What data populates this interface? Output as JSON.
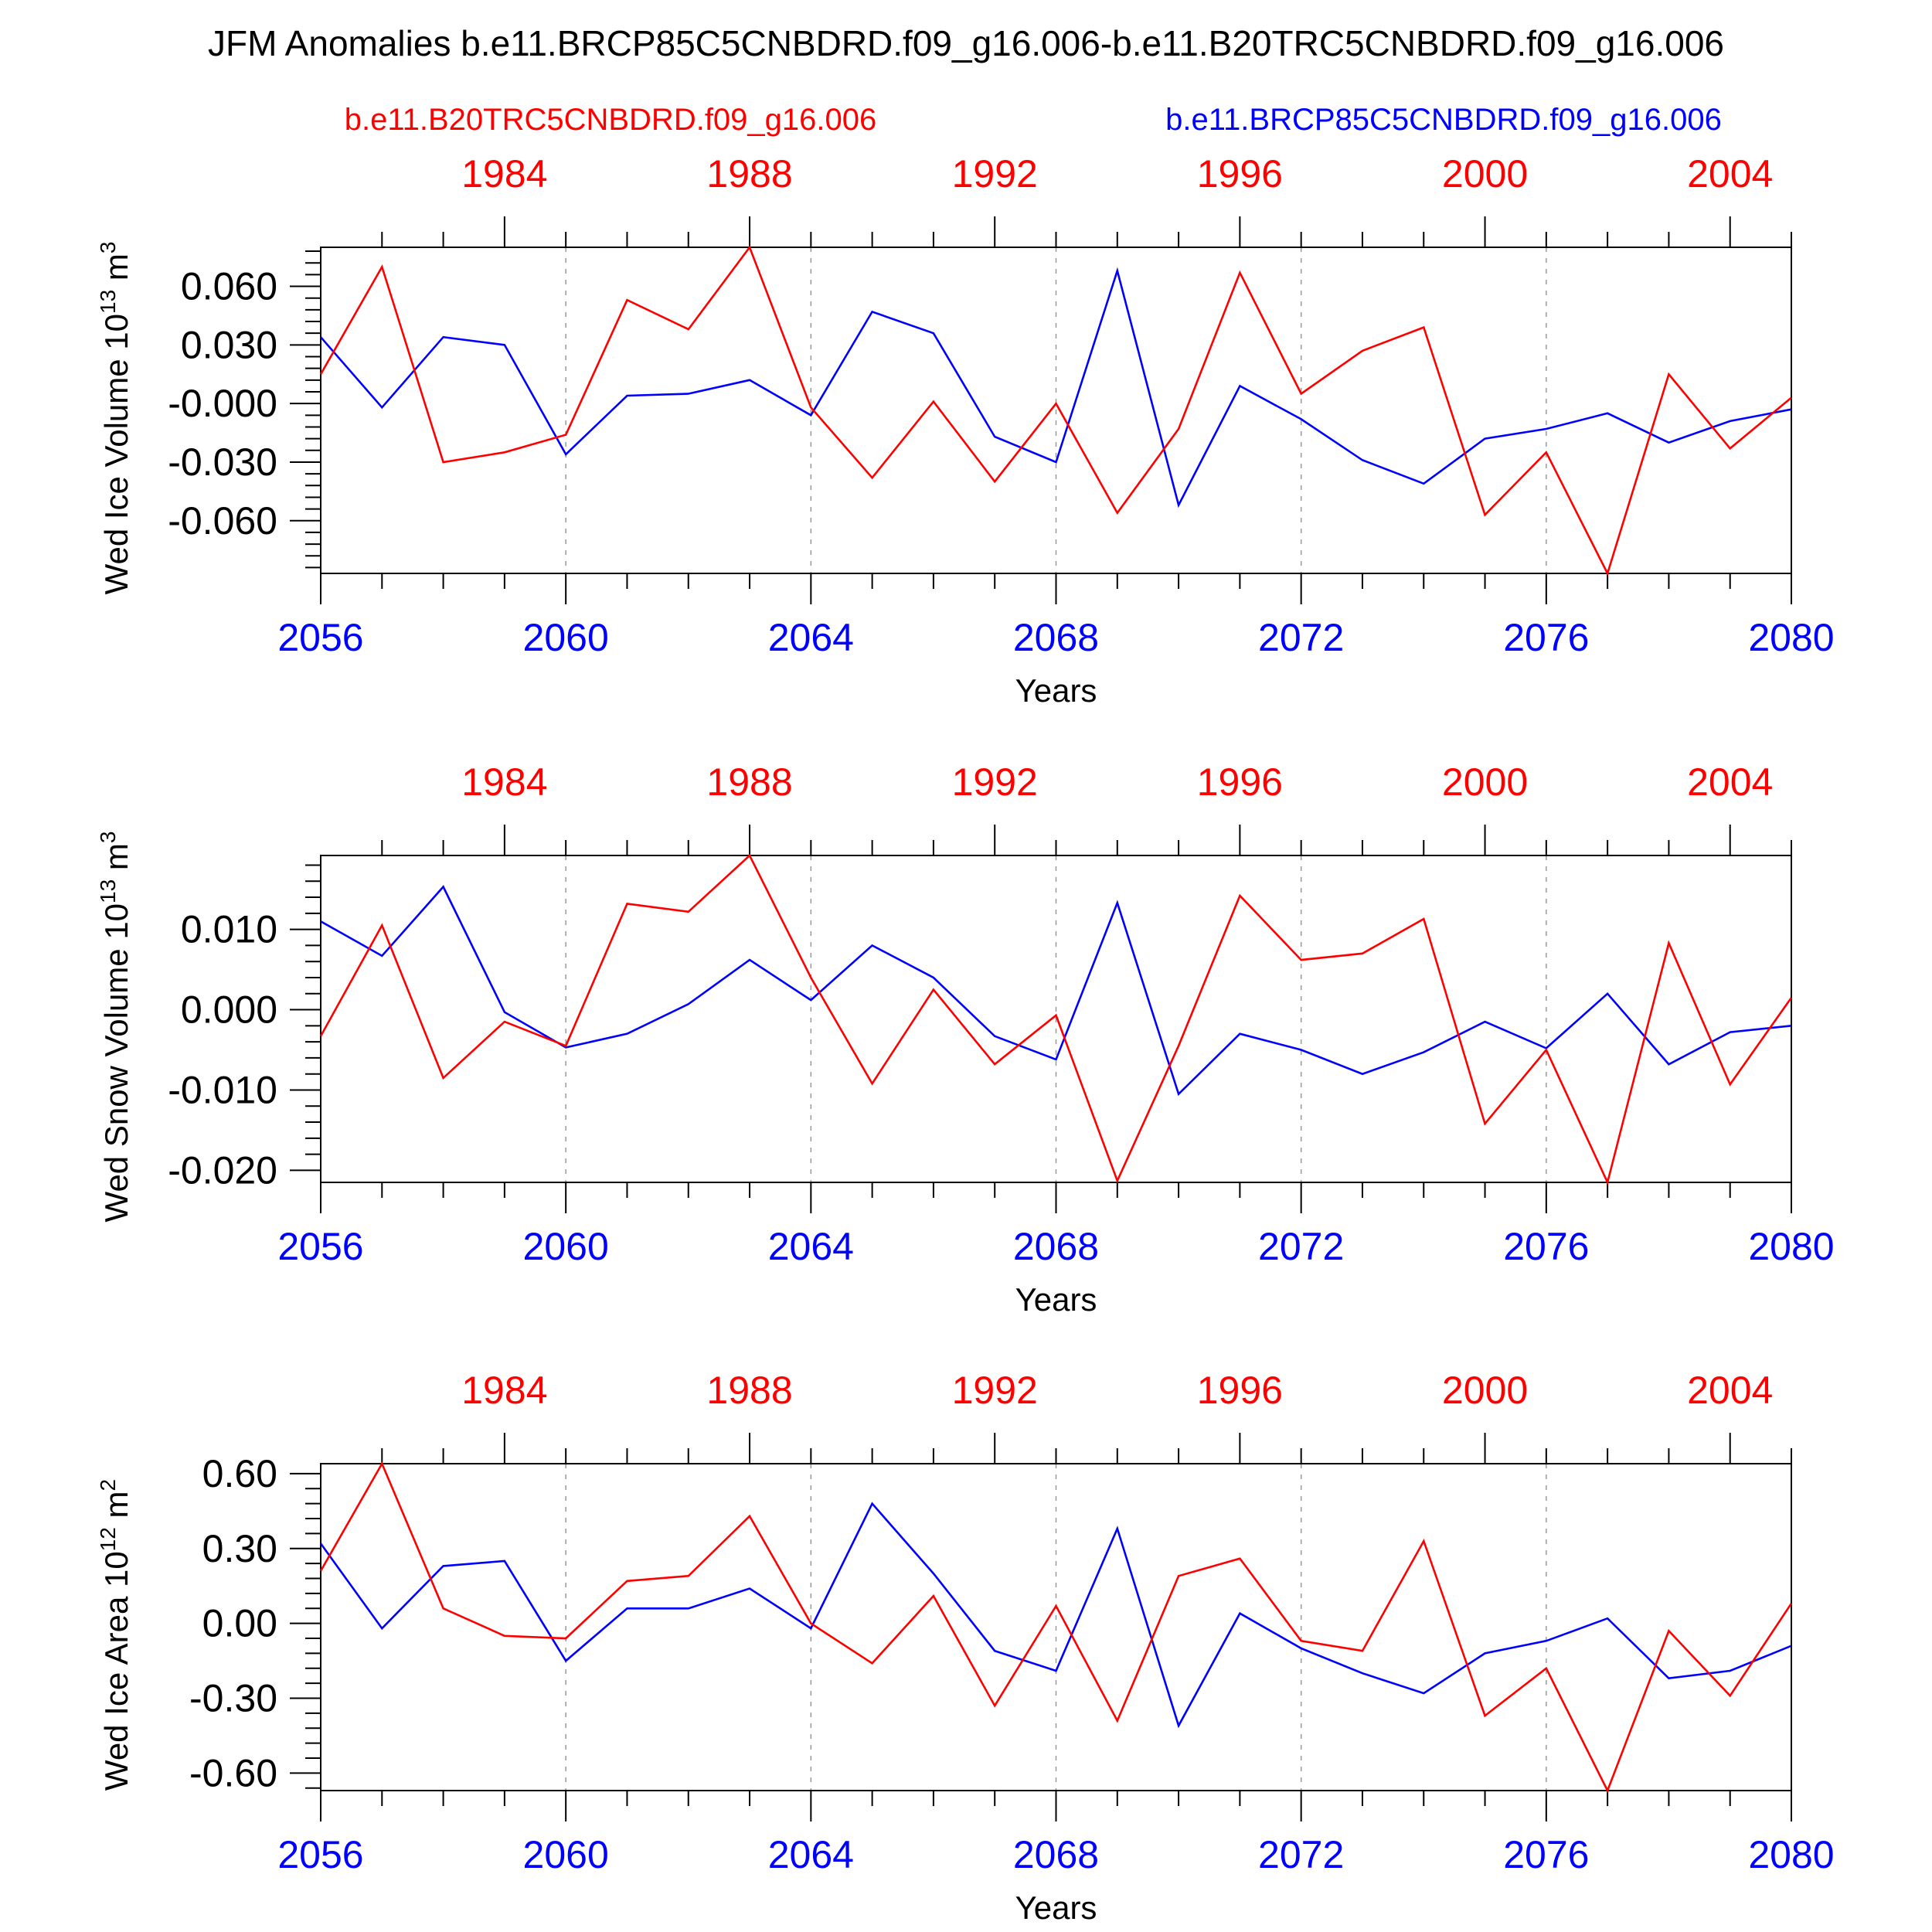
{
  "title": "JFM Anomalies b.e11.BRCP85C5CNBDRD.f09_g16.006-b.e11.B20TRC5CNBDRD.f09_g16.006",
  "legend": {
    "red_label": "b.e11.B20TRC5CNBDRD.f09_g16.006",
    "blue_label": "b.e11.BRCP85C5CNBDRD.f09_g16.006"
  },
  "colors": {
    "red": "#ff0000",
    "blue": "#0000ff",
    "axis": "#000000",
    "grid": "#999999"
  },
  "chart_data": [
    {
      "type": "line",
      "ylabel": "Wed Ice Volume 10",
      "ylabel_exp": "13",
      "ylabel_unit": "m",
      "ylabel_unit_exp": "3",
      "xlabel": "Years",
      "x_bottom": [
        2056,
        2057,
        2058,
        2059,
        2060,
        2061,
        2062,
        2063,
        2064,
        2065,
        2066,
        2067,
        2068,
        2069,
        2070,
        2071,
        2072,
        2073,
        2074,
        2075,
        2076,
        2077,
        2078,
        2079,
        2080
      ],
      "x_bottom_ticks": [
        "2056",
        "2060",
        "2064",
        "2068",
        "2072",
        "2076",
        "2080"
      ],
      "x_top_ticks": [
        "1984",
        "1988",
        "1992",
        "1996",
        "2000",
        "2004"
      ],
      "ylim": [
        -0.087,
        0.08
      ],
      "yticks": [
        "0.060",
        "0.030",
        "-0.000",
        "-0.030",
        "-0.060"
      ],
      "series": [
        {
          "name": "b.e11.B20TRC5CNBDRD.f09_g16.006",
          "color": "#ff0000",
          "values": [
            0.015,
            0.07,
            -0.03,
            -0.025,
            -0.016,
            0.053,
            0.038,
            0.08,
            -0.002,
            -0.038,
            0.001,
            -0.04,
            0.0,
            -0.056,
            -0.013,
            0.067,
            0.005,
            0.027,
            0.039,
            -0.057,
            -0.025,
            -0.087,
            0.015,
            -0.023,
            0.003
          ]
        },
        {
          "name": "b.e11.BRCP85C5CNBDRD.f09_g16.006",
          "color": "#0000ff",
          "values": [
            0.034,
            -0.002,
            0.034,
            0.03,
            -0.026,
            0.004,
            0.005,
            0.012,
            -0.006,
            0.047,
            0.036,
            -0.017,
            -0.03,
            0.068,
            -0.052,
            0.009,
            -0.008,
            -0.029,
            -0.041,
            -0.018,
            -0.013,
            -0.005,
            -0.02,
            -0.009,
            -0.003
          ]
        }
      ]
    },
    {
      "type": "line",
      "ylabel": "Wed Snow Volume 10",
      "ylabel_exp": "13",
      "ylabel_unit": "m",
      "ylabel_unit_exp": "3",
      "xlabel": "Years",
      "x_bottom": [
        2056,
        2057,
        2058,
        2059,
        2060,
        2061,
        2062,
        2063,
        2064,
        2065,
        2066,
        2067,
        2068,
        2069,
        2070,
        2071,
        2072,
        2073,
        2074,
        2075,
        2076,
        2077,
        2078,
        2079,
        2080
      ],
      "x_bottom_ticks": [
        "2056",
        "2060",
        "2064",
        "2068",
        "2072",
        "2076",
        "2080"
      ],
      "x_top_ticks": [
        "1984",
        "1988",
        "1992",
        "1996",
        "2000",
        "2004"
      ],
      "ylim": [
        -0.0215,
        0.0192
      ],
      "yticks": [
        "0.010",
        "0.000",
        "-0.010",
        "-0.020"
      ],
      "series": [
        {
          "name": "b.e11.B20TRC5CNBDRD.f09_g16.006",
          "color": "#ff0000",
          "values": [
            -0.0033,
            0.0105,
            -0.0085,
            -0.0015,
            -0.0045,
            0.0132,
            0.0122,
            0.0192,
            0.004,
            -0.0092,
            0.0025,
            -0.0068,
            -0.0007,
            -0.0213,
            -0.0045,
            0.0142,
            0.0062,
            0.007,
            0.0113,
            -0.0142,
            -0.005,
            -0.0215,
            0.0083,
            -0.0093,
            0.0015
          ]
        },
        {
          "name": "b.e11.BRCP85C5CNBDRD.f09_g16.006",
          "color": "#0000ff",
          "values": [
            0.011,
            0.0067,
            0.0153,
            -0.0003,
            -0.0047,
            -0.003,
            0.0007,
            0.0062,
            0.0012,
            0.008,
            0.004,
            -0.0033,
            -0.0062,
            0.0133,
            -0.0105,
            -0.003,
            -0.005,
            -0.008,
            -0.0053,
            -0.0015,
            -0.0048,
            0.002,
            -0.0068,
            -0.0028,
            -0.002
          ]
        }
      ]
    },
    {
      "type": "line",
      "ylabel": "Wed Ice Area 10",
      "ylabel_exp": "12",
      "ylabel_unit": "m",
      "ylabel_unit_exp": "2",
      "xlabel": "Years",
      "x_bottom": [
        2056,
        2057,
        2058,
        2059,
        2060,
        2061,
        2062,
        2063,
        2064,
        2065,
        2066,
        2067,
        2068,
        2069,
        2070,
        2071,
        2072,
        2073,
        2074,
        2075,
        2076,
        2077,
        2078,
        2079,
        2080
      ],
      "x_bottom_ticks": [
        "2056",
        "2060",
        "2064",
        "2068",
        "2072",
        "2076",
        "2080"
      ],
      "x_top_ticks": [
        "1984",
        "1988",
        "1992",
        "1996",
        "2000",
        "2004"
      ],
      "ylim": [
        -0.67,
        0.64
      ],
      "yticks": [
        "0.60",
        "0.30",
        "0.00",
        "-0.30",
        "-0.60"
      ],
      "series": [
        {
          "name": "b.e11.B20TRC5CNBDRD.f09_g16.006",
          "color": "#ff0000",
          "values": [
            0.21,
            0.64,
            0.06,
            -0.05,
            -0.06,
            0.17,
            0.19,
            0.43,
            0.0,
            -0.16,
            0.11,
            -0.33,
            0.07,
            -0.39,
            0.19,
            0.26,
            -0.07,
            -0.11,
            0.33,
            -0.37,
            -0.18,
            -0.67,
            -0.03,
            -0.29,
            0.08
          ]
        },
        {
          "name": "b.e11.BRCP85C5CNBDRD.f09_g16.006",
          "color": "#0000ff",
          "values": [
            0.32,
            -0.02,
            0.23,
            0.25,
            -0.15,
            0.06,
            0.06,
            0.14,
            -0.02,
            0.48,
            0.2,
            -0.11,
            -0.19,
            0.38,
            -0.41,
            0.04,
            -0.1,
            -0.2,
            -0.28,
            -0.12,
            -0.07,
            0.02,
            -0.22,
            -0.19,
            -0.09
          ]
        }
      ]
    }
  ]
}
